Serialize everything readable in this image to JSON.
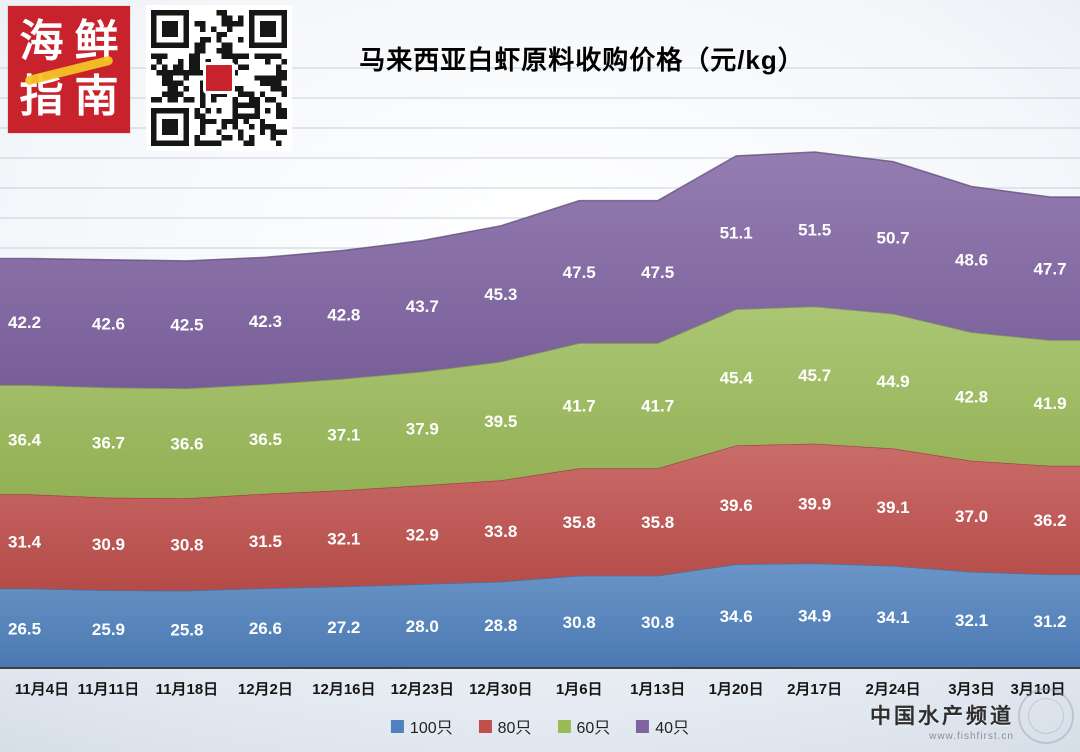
{
  "header": {
    "logo": {
      "chars": [
        "海",
        "鲜",
        "指",
        "南"
      ],
      "bg_color": "#c8232c",
      "accent_color": "#f5c328"
    }
  },
  "chart_data": {
    "type": "area",
    "stacked": true,
    "title": "马来西亚白虾原料收购价格（元/kg）",
    "unit": "元/kg",
    "grid": true,
    "legend_position": "bottom",
    "xlabel": "",
    "ylabel": "",
    "categories": [
      "11月4日",
      "11月11日",
      "11月18日",
      "12月2日",
      "12月16日",
      "12月23日",
      "12月30日",
      "1月6日",
      "1月13日",
      "1月20日",
      "2月17日",
      "2月24日",
      "3月3日",
      "3月10日"
    ],
    "series": [
      {
        "name": "100只",
        "color": "#4f81bd",
        "values": [
          26.5,
          25.9,
          25.8,
          26.6,
          27.2,
          28.0,
          28.8,
          30.8,
          30.8,
          34.6,
          34.9,
          34.1,
          32.1,
          31.2
        ]
      },
      {
        "name": "80只",
        "color": "#c0504d",
        "values": [
          31.4,
          30.9,
          30.8,
          31.5,
          32.1,
          32.9,
          33.8,
          35.8,
          35.8,
          39.6,
          39.9,
          39.1,
          37.0,
          36.2
        ]
      },
      {
        "name": "60只",
        "color": "#9bbb59",
        "values": [
          36.4,
          36.7,
          36.6,
          36.5,
          37.1,
          37.9,
          39.5,
          41.7,
          41.7,
          45.4,
          45.7,
          44.9,
          42.8,
          41.9
        ]
      },
      {
        "name": "40只",
        "color": "#8064a2",
        "values": [
          42.2,
          42.6,
          42.5,
          42.3,
          42.8,
          43.7,
          45.3,
          47.5,
          47.5,
          51.1,
          51.5,
          50.7,
          48.6,
          47.7
        ]
      }
    ]
  },
  "footer": {
    "brand": "中国水产频道",
    "url": "www.fishfirst.cn"
  }
}
